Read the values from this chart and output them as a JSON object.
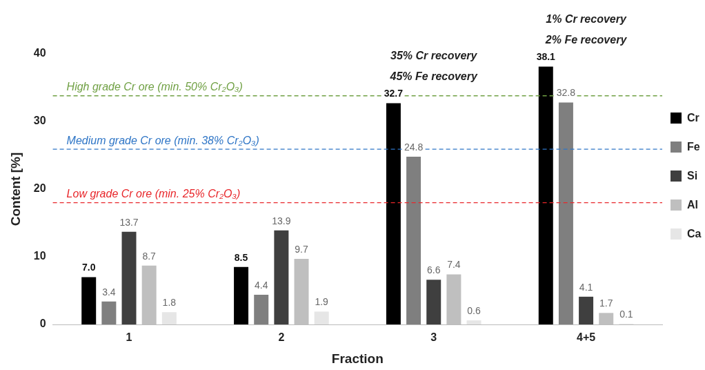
{
  "chart_data": {
    "type": "bar",
    "xlabel": "Fraction",
    "ylabel": "Content [%]",
    "categories": [
      "1",
      "2",
      "3",
      "4+5"
    ],
    "series": [
      {
        "name": "Cr",
        "color": "#000000",
        "values": [
          7.0,
          8.5,
          32.7,
          38.1
        ],
        "value_labels": [
          "7.0",
          "8.5",
          "32.7",
          "38.1"
        ]
      },
      {
        "name": "Fe",
        "color": "#7f7f7f",
        "values": [
          3.4,
          4.4,
          24.8,
          32.8
        ],
        "value_labels": [
          "3.4",
          "4.4",
          "24.8",
          "32.8"
        ]
      },
      {
        "name": "Si",
        "color": "#3f3f3f",
        "values": [
          13.7,
          13.9,
          6.6,
          4.1
        ],
        "value_labels": [
          "13.7",
          "13.9",
          "6.6",
          "4.1"
        ]
      },
      {
        "name": "Al",
        "color": "#bfbfbf",
        "values": [
          8.7,
          9.7,
          7.4,
          1.7
        ],
        "value_labels": [
          "8.7",
          "9.7",
          "7.4",
          "1.7"
        ]
      },
      {
        "name": "Ca",
        "color": "#e6e6e6",
        "values": [
          1.8,
          1.9,
          0.6,
          0.1
        ],
        "value_labels": [
          "1.8",
          "1.9",
          "0.6",
          "0.1"
        ]
      }
    ],
    "ylim": [
      0,
      40
    ],
    "yticks": [
      0,
      10,
      20,
      30,
      40
    ],
    "grid": false,
    "legend": "right",
    "ref_lines": [
      {
        "axis": "y",
        "value": 33.8,
        "label": "High grade Cr ore (min. 50% Cr₂O₃)",
        "color": "#70a044",
        "line_style": "dashed"
      },
      {
        "axis": "y",
        "value": 25.9,
        "label": "Medium grade Cr ore (min. 38% Cr₂O₃)",
        "color": "#2e75c6",
        "line_style": "dashed"
      },
      {
        "axis": "y",
        "value": 18.0,
        "label": "Low grade Cr ore (min. 25% Cr₂O₃)",
        "color": "#e8262a",
        "line_style": "dashed"
      }
    ],
    "annotations": [
      "35% Cr recovery",
      "45% Fe recovery",
      "1% Cr recovery",
      "2% Fe recovery"
    ]
  }
}
